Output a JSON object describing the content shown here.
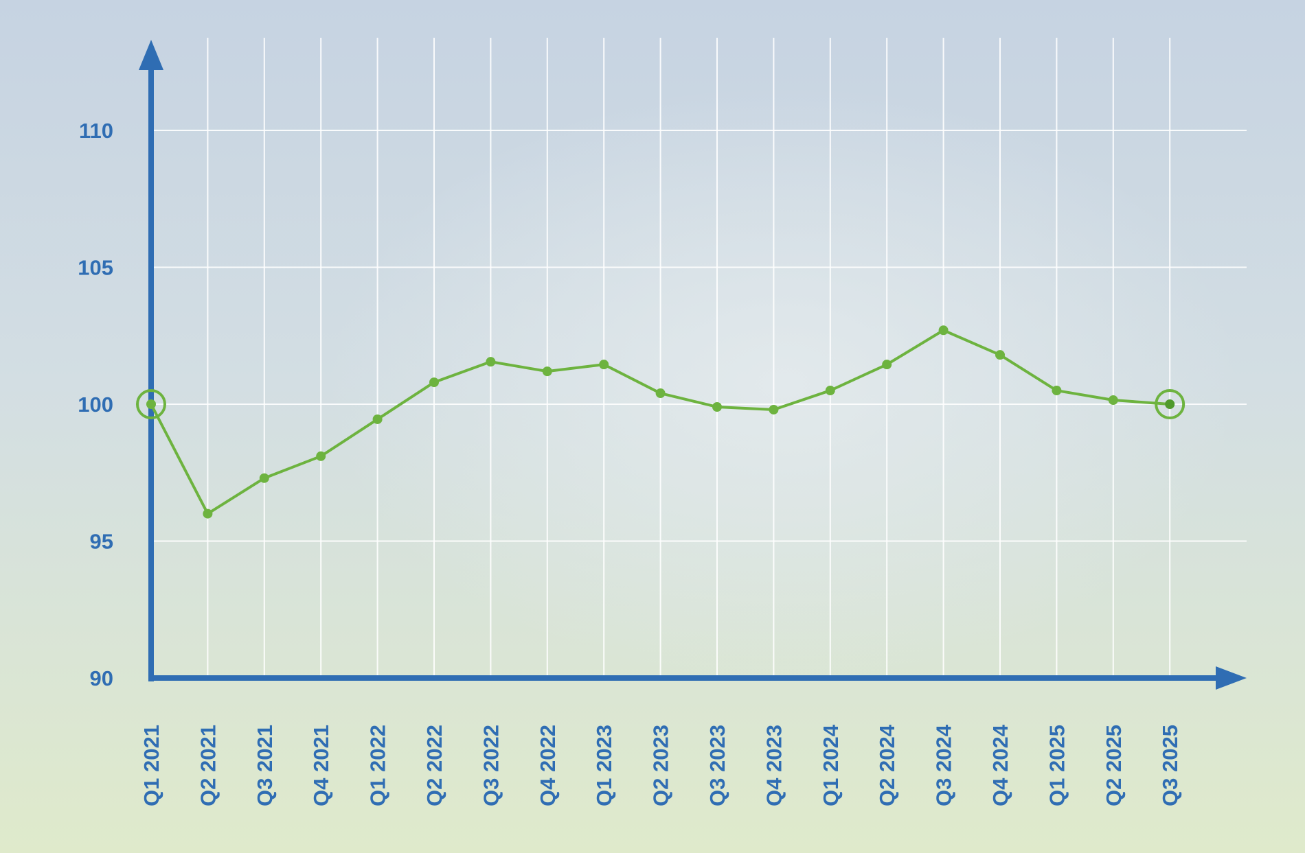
{
  "chart_data": {
    "type": "line",
    "title": "",
    "xlabel": "",
    "ylabel": "",
    "categories": [
      "Q1 2021",
      "Q2 2021",
      "Q3 2021",
      "Q4 2021",
      "Q1 2022",
      "Q2 2022",
      "Q3 2022",
      "Q4 2022",
      "Q1 2023",
      "Q2 2023",
      "Q3 2023",
      "Q4 2023",
      "Q1 2024",
      "Q2 2024",
      "Q3 2024",
      "Q4 2024",
      "Q1 2025",
      "Q2 2025",
      "Q3 2025"
    ],
    "values": [
      100,
      96.0,
      97.3,
      98.1,
      99.45,
      100.8,
      101.55,
      101.2,
      101.45,
      100.4,
      99.9,
      99.8,
      100.5,
      101.45,
      102.7,
      101.8,
      100.5,
      100.15,
      100
    ],
    "ylim": [
      90,
      112
    ],
    "yticks": [
      90,
      95,
      100,
      105,
      110
    ],
    "grid": true,
    "highlighted_points": [
      "Q1 2021",
      "Q3 2025"
    ],
    "colors": {
      "line": "#6db33f",
      "axis": "#2f6db3",
      "tick_labels": "#2f6db3",
      "grid": "#ffffff",
      "background_top": "#c8d5e3",
      "background_bottom": "#dfeacd"
    }
  }
}
